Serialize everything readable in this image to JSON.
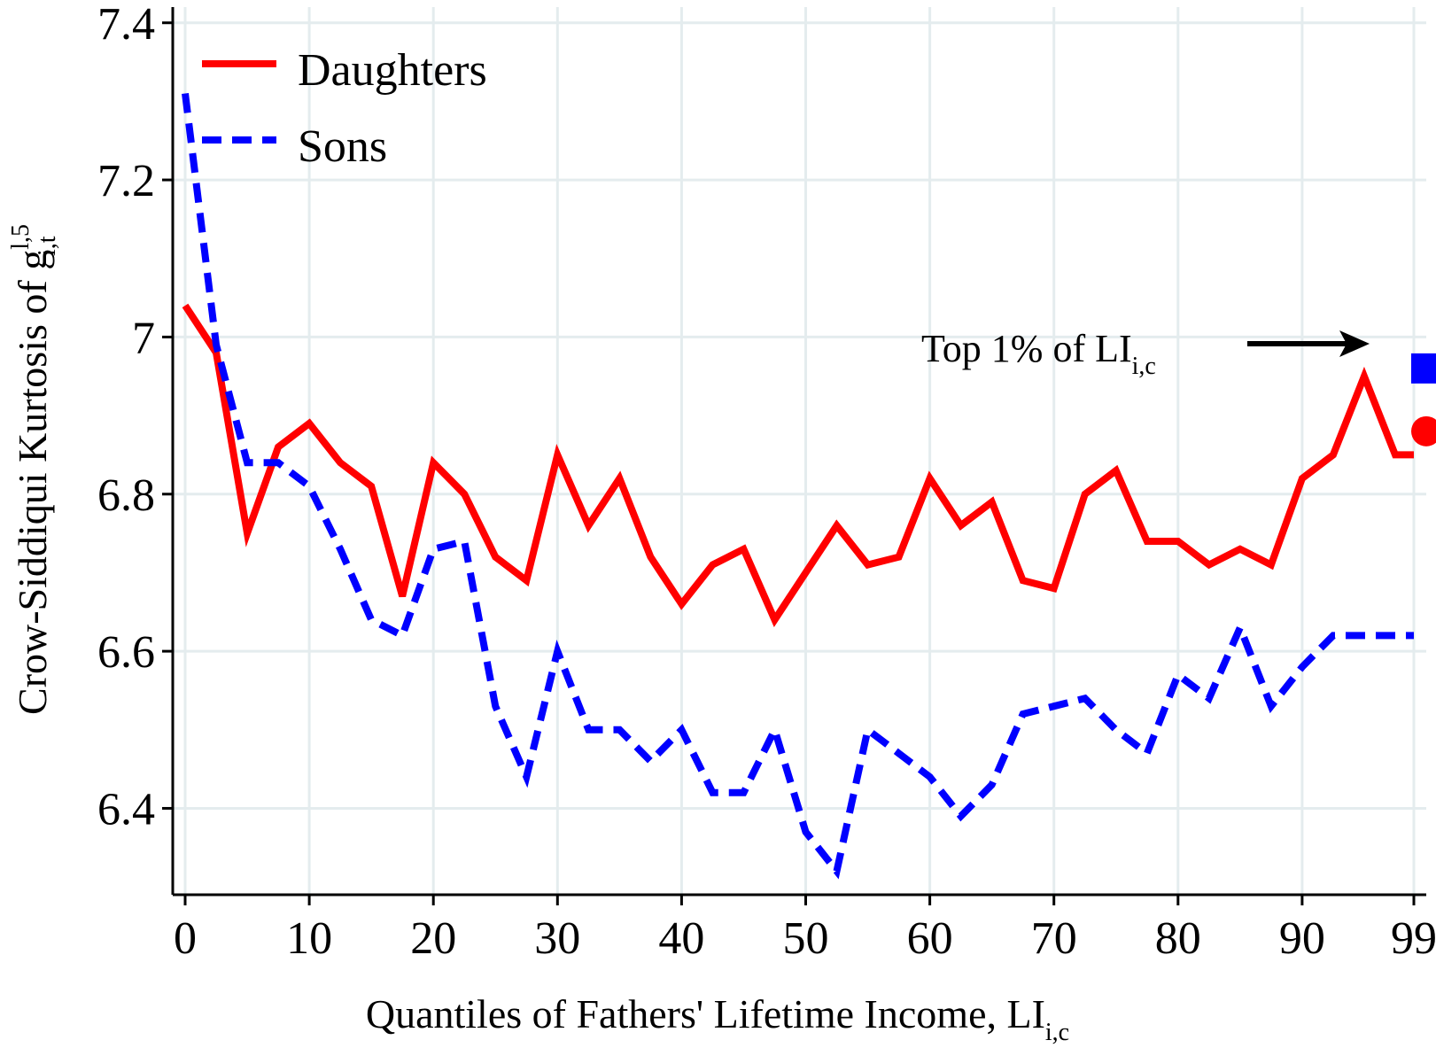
{
  "chart_data": {
    "type": "line",
    "title": "",
    "xlabel": "Quantiles of Fathers' Lifetime Income, LI",
    "xlabel_sub": "i,c",
    "ylabel": "Crow-Siddiqui Kurtosis of g",
    "ylabel_sup": "l,5",
    "ylabel_sub": "i,t",
    "xlim": [
      -1,
      100
    ],
    "ylim": [
      6.29,
      7.42
    ],
    "x_ticks": [
      0,
      10,
      20,
      30,
      40,
      50,
      60,
      70,
      80,
      90,
      99
    ],
    "x_tick_labels": [
      "0",
      "10",
      "20",
      "30",
      "40",
      "50",
      "60",
      "70",
      "80",
      "90",
      "99"
    ],
    "y_ticks": [
      6.4,
      6.6,
      6.8,
      7.0,
      7.2,
      7.4
    ],
    "y_tick_labels": [
      "6.4",
      "6.6",
      "6.8",
      "7",
      "7.2",
      "7.4"
    ],
    "grid": true,
    "legend_position": "top-left",
    "x": [
      0,
      2.5,
      5,
      7.5,
      10,
      12.5,
      15,
      17.5,
      20,
      22.5,
      25,
      27.5,
      30,
      32.5,
      35,
      37.5,
      40,
      42.5,
      45,
      47.5,
      50,
      52.5,
      55,
      57.5,
      60,
      62.5,
      65,
      67.5,
      70,
      72.5,
      75,
      77.5,
      80,
      82.5,
      85,
      87.5,
      90,
      92.5,
      95,
      97.5,
      99
    ],
    "series": [
      {
        "name": "Daughters",
        "color": "#ff0000",
        "style": "solid",
        "values": [
          7.04,
          6.98,
          6.75,
          6.86,
          6.89,
          6.84,
          6.81,
          6.67,
          6.84,
          6.8,
          6.72,
          6.69,
          6.85,
          6.76,
          6.82,
          6.72,
          6.66,
          6.71,
          6.73,
          6.64,
          6.7,
          6.76,
          6.71,
          6.72,
          6.82,
          6.76,
          6.79,
          6.69,
          6.68,
          6.8,
          6.83,
          6.74,
          6.74,
          6.71,
          6.73,
          6.71,
          6.82,
          6.85,
          6.95,
          6.85,
          6.85
        ]
      },
      {
        "name": "Sons",
        "color": "#0000ff",
        "style": "dashed",
        "values": [
          7.31,
          6.99,
          6.84,
          6.84,
          6.81,
          6.73,
          6.64,
          6.62,
          6.73,
          6.74,
          6.53,
          6.44,
          6.6,
          6.5,
          6.5,
          6.46,
          6.5,
          6.42,
          6.42,
          6.5,
          6.37,
          6.32,
          6.5,
          6.47,
          6.44,
          6.39,
          6.43,
          6.52,
          6.53,
          6.54,
          6.5,
          6.47,
          6.57,
          6.54,
          6.63,
          6.53,
          6.58,
          6.62,
          6.62,
          6.62,
          6.62
        ]
      }
    ],
    "extra_points": [
      {
        "series": "Sons",
        "label": "Top 1%",
        "x": 100,
        "y": 6.96,
        "marker": "square",
        "color": "#0000ff"
      },
      {
        "series": "Daughters",
        "label": "Top 1%",
        "x": 100,
        "y": 6.88,
        "marker": "circle",
        "color": "#ff0000"
      }
    ],
    "annotation": {
      "text": "Top 1% of LI",
      "sub": "i,c"
    }
  }
}
